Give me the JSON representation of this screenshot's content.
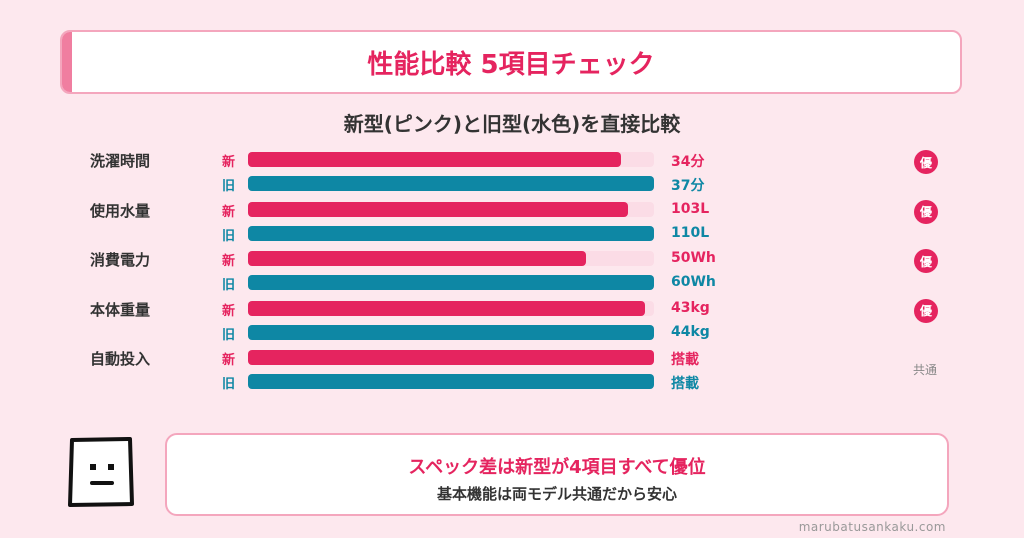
{
  "title": "性能比較 5項目チェック",
  "subtitle": "新型(ピンク)と旧型(水色)を直接比較",
  "labels": {
    "new": "新",
    "old": "旧",
    "better": "優",
    "common": "共通"
  },
  "colors": {
    "new": "#e5245f",
    "old": "#0e87a4",
    "track": "#fbdce6",
    "background": "#fde8ee"
  },
  "chart_data": {
    "type": "bar",
    "orientation": "horizontal",
    "categories": [
      "洗濯時間",
      "使用水量",
      "消費電力",
      "本体重量",
      "自動投入"
    ],
    "series": [
      {
        "name": "新型",
        "values": [
          34,
          103,
          50,
          43,
          null
        ],
        "labels": [
          "34分",
          "103L",
          "50Wh",
          "43kg",
          "搭載"
        ]
      },
      {
        "name": "旧型",
        "values": [
          37,
          110,
          60,
          44,
          null
        ],
        "labels": [
          "37分",
          "110L",
          "60Wh",
          "44kg",
          "搭載"
        ]
      }
    ],
    "result": [
      "優",
      "優",
      "優",
      "優",
      "共通"
    ]
  },
  "summary": {
    "line1": "スペック差は新型が4項目すべて優位",
    "line2": "基本機能は両モデル共通だから安心"
  },
  "site": "marubatusankaku.com"
}
